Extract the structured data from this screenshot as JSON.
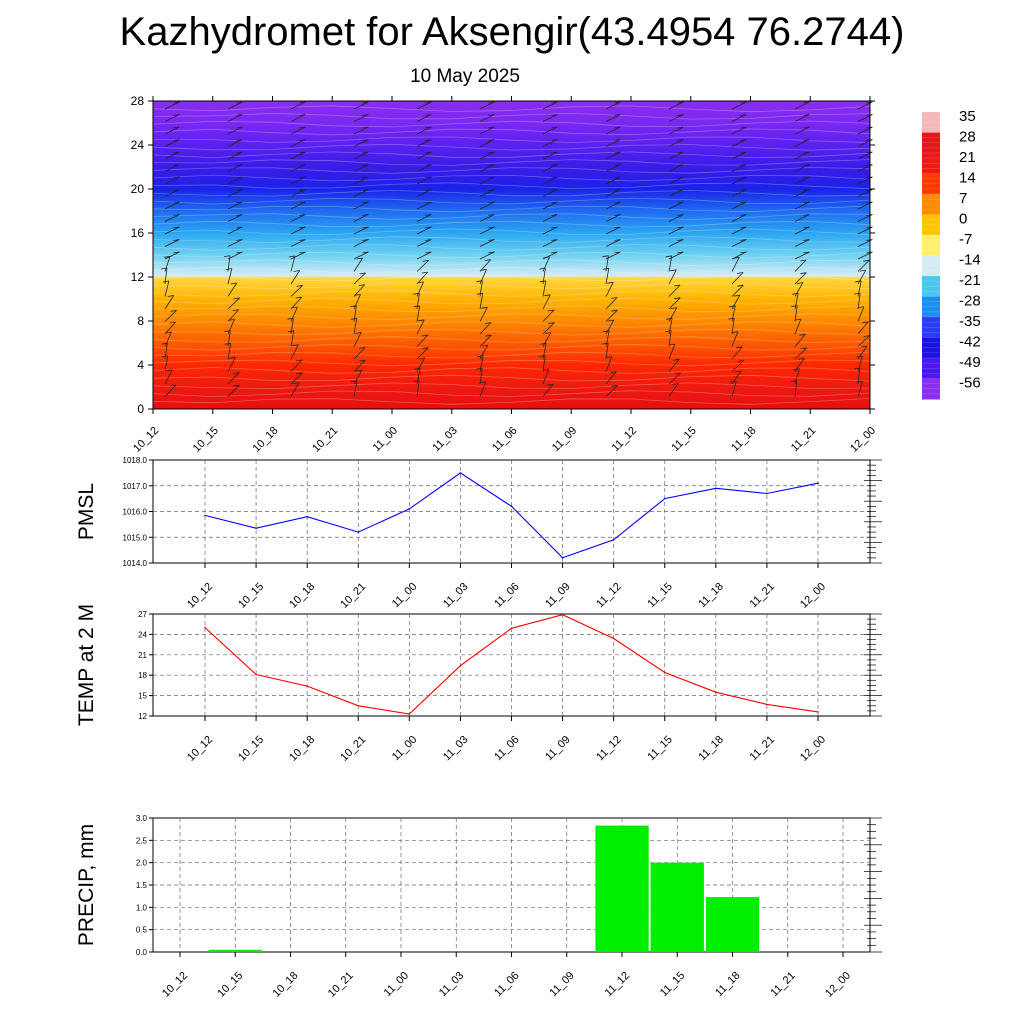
{
  "title": "Kazhydromet for Aksengir(43.4954 76.2744)",
  "subtitle": "10 May 2025",
  "chart_data": [
    {
      "type": "heatmap",
      "title": "",
      "xlabel": "",
      "ylabel": "",
      "x_ticks": [
        "10_12",
        "10_15",
        "10_18",
        "10_21",
        "11_00",
        "11_03",
        "11_06",
        "11_09",
        "11_12",
        "11_15",
        "11_18",
        "11_21",
        "12_00"
      ],
      "y_ticks": [
        0,
        4,
        8,
        12,
        16,
        20,
        24,
        28
      ],
      "ylim": [
        0,
        28
      ],
      "colorbar": {
        "labels": [
          "35",
          "28",
          "21",
          "14",
          "7",
          "0",
          "-7",
          "-14",
          "-21",
          "-28",
          "-35",
          "-42",
          "-49",
          "-56"
        ],
        "colors": [
          "#f4b8b8",
          "#e01818",
          "#ee1a10",
          "#ff3a00",
          "#ff8a00",
          "#ffc400",
          "#fff06a",
          "#d6ecf4",
          "#4cc6ee",
          "#1d8ef0",
          "#2a3df0",
          "#1a14e0",
          "#4a18ee",
          "#8a2ef0"
        ]
      },
      "profile": {
        "levels": [
          0,
          2,
          4,
          6,
          8,
          10,
          11.9,
          12.1,
          14,
          16,
          18,
          20,
          22,
          24,
          26,
          28
        ],
        "colors": [
          "#e60f0f",
          "#ee1a10",
          "#ff2800",
          "#ff5a00",
          "#ff8a00",
          "#ffb400",
          "#ffd640",
          "#d6ecf4",
          "#6fd2f0",
          "#2aa6f2",
          "#1e6cf0",
          "#1a22e8",
          "#3a1ce8",
          "#5a20f0",
          "#7a28f2",
          "#8a2ef0"
        ]
      }
    },
    {
      "type": "line",
      "ylabel": "PMSL",
      "ylim": [
        1014.0,
        1018.0
      ],
      "y_ticks": [
        "1014.0",
        "1015.0",
        "1016.0",
        "1017.0",
        "1018.0"
      ],
      "categories": [
        "10_12",
        "10_15",
        "10_18",
        "10_21",
        "11_00",
        "11_03",
        "11_06",
        "11_09",
        "11_12",
        "11_15",
        "11_18",
        "11_21",
        "12_00"
      ],
      "series": [
        {
          "values": [
            1015.85,
            1015.35,
            1015.8,
            1015.2,
            1016.1,
            1017.5,
            1016.2,
            1014.2,
            1014.9,
            1016.5,
            1016.9,
            1016.7,
            1017.1
          ],
          "color": "#0000ff"
        }
      ]
    },
    {
      "type": "line",
      "ylabel": "TEMP at 2 M",
      "ylim": [
        12,
        27
      ],
      "y_ticks": [
        "12",
        "15",
        "18",
        "21",
        "24",
        "27"
      ],
      "categories": [
        "10_12",
        "10_15",
        "10_18",
        "10_21",
        "11_00",
        "11_03",
        "11_06",
        "11_09",
        "11_12",
        "11_15",
        "11_18",
        "11_21",
        "12_00"
      ],
      "series": [
        {
          "values": [
            25.0,
            18.1,
            16.4,
            13.5,
            12.3,
            19.4,
            24.9,
            26.9,
            23.4,
            18.4,
            15.5,
            13.7,
            12.6
          ],
          "color": "#ff0000"
        }
      ]
    },
    {
      "type": "bar",
      "ylabel": "PRECIP, mm",
      "ylim": [
        0,
        3.0
      ],
      "y_ticks": [
        "0.0",
        "0.5",
        "1.0",
        "1.5",
        "2.0",
        "2.5",
        "3.0"
      ],
      "categories": [
        "10_12",
        "10_15",
        "10_18",
        "10_21",
        "11_00",
        "11_03",
        "11_06",
        "11_09",
        "11_12",
        "11_15",
        "11_18",
        "11_21",
        "12_00"
      ],
      "series": [
        {
          "values": [
            0,
            0.05,
            0,
            0,
            0,
            0,
            0,
            0,
            2.83,
            2.0,
            1.23,
            0,
            0
          ],
          "color": "#00ee00"
        }
      ]
    }
  ]
}
